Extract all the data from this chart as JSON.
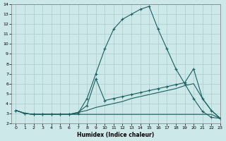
{
  "background_color": "#cce8e8",
  "grid_color": "#aacccc",
  "line_color": "#1a6060",
  "xlabel": "Humidex (Indice chaleur)",
  "xlim": [
    -0.5,
    23
  ],
  "ylim": [
    2,
    14
  ],
  "xticks": [
    0,
    1,
    2,
    3,
    4,
    5,
    6,
    7,
    8,
    9,
    10,
    11,
    12,
    13,
    14,
    15,
    16,
    17,
    18,
    19,
    20,
    21,
    22,
    23
  ],
  "yticks": [
    2,
    3,
    4,
    5,
    6,
    7,
    8,
    9,
    10,
    11,
    12,
    13,
    14
  ],
  "series1_x": [
    0,
    1,
    2,
    3,
    4,
    5,
    6,
    7,
    8,
    9,
    10,
    11,
    12,
    13,
    14,
    15,
    16,
    17,
    18,
    19,
    20,
    21,
    22,
    23
  ],
  "series1_y": [
    3.3,
    3.0,
    2.9,
    2.9,
    2.9,
    2.9,
    2.9,
    3.0,
    4.5,
    7.0,
    9.5,
    11.5,
    12.5,
    13.0,
    13.5,
    13.8,
    11.5,
    9.5,
    7.5,
    6.0,
    4.5,
    3.2,
    2.6,
    2.5
  ],
  "series1_markers": [
    0,
    1,
    2,
    3,
    4,
    5,
    6,
    7,
    8,
    9,
    10,
    11,
    12,
    13,
    14,
    15,
    16,
    17,
    18,
    19,
    20,
    21,
    22,
    23
  ],
  "series2_x": [
    0,
    1,
    2,
    3,
    4,
    5,
    6,
    7,
    8,
    9,
    10,
    11,
    12,
    13,
    14,
    15,
    16,
    17,
    18,
    19,
    20,
    21,
    22,
    23
  ],
  "series2_y": [
    3.3,
    3.0,
    2.9,
    2.9,
    2.9,
    2.9,
    2.9,
    3.1,
    3.8,
    6.5,
    4.3,
    4.5,
    4.7,
    4.9,
    5.1,
    5.3,
    5.5,
    5.7,
    5.9,
    6.1,
    7.5,
    4.5,
    3.3,
    2.5
  ],
  "series3_x": [
    0,
    1,
    2,
    3,
    4,
    5,
    6,
    7,
    8,
    9,
    10,
    11,
    12,
    13,
    14,
    15,
    16,
    17,
    18,
    19,
    20,
    21,
    22,
    23
  ],
  "series3_y": [
    3.3,
    3.0,
    2.9,
    2.9,
    2.9,
    2.9,
    2.9,
    3.1,
    3.3,
    3.6,
    3.8,
    4.0,
    4.2,
    4.5,
    4.7,
    4.9,
    5.1,
    5.3,
    5.5,
    5.8,
    6.0,
    4.5,
    3.3,
    2.5
  ],
  "series4_x": [
    0,
    1,
    2,
    3,
    4,
    5,
    6,
    7,
    8,
    9,
    10,
    11,
    12,
    13,
    14,
    15,
    16,
    17,
    18,
    19,
    20,
    21,
    22,
    23
  ],
  "series4_y": [
    3.3,
    3.0,
    2.9,
    2.9,
    2.9,
    2.9,
    2.9,
    2.9,
    2.9,
    2.9,
    2.9,
    2.9,
    2.9,
    2.9,
    2.9,
    2.9,
    2.9,
    2.9,
    2.9,
    2.9,
    2.9,
    2.9,
    2.9,
    2.5
  ]
}
